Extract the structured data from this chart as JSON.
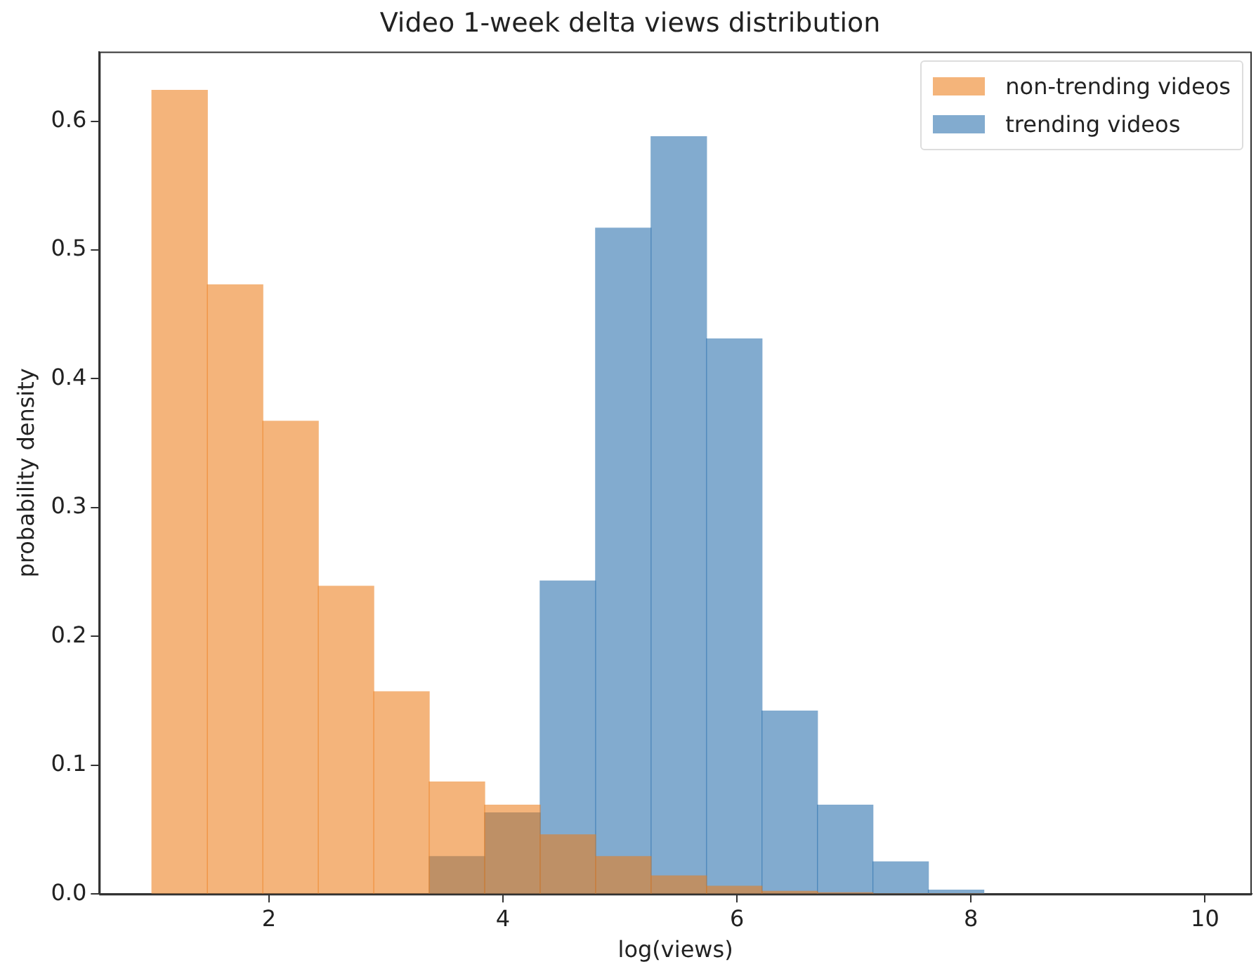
{
  "chart_data": {
    "type": "histogram",
    "title": "Video 1-week delta views distribution",
    "xlabel": "log(views)",
    "ylabel": "probability density",
    "bins": [
      1,
      1.474,
      1.948,
      2.422,
      2.896,
      3.37,
      3.844,
      4.318,
      4.792,
      5.266,
      5.74,
      6.214,
      6.688,
      7.162,
      7.636,
      8.11
    ],
    "series": [
      {
        "name": "non-trending videos",
        "color": "#f4b47a",
        "values": [
          0.624,
          0.473,
          0.367,
          0.239,
          0.157,
          0.087,
          0.069,
          0.046,
          0.029,
          0.014,
          0.006,
          0.002,
          0.001,
          0,
          0
        ]
      },
      {
        "name": "trending videos",
        "color": "#82abcf",
        "values": [
          0,
          0,
          0,
          0,
          0,
          0.029,
          0.063,
          0.243,
          0.517,
          0.588,
          0.431,
          0.142,
          0.069,
          0.025,
          0.003
        ]
      }
    ],
    "xlim": [
      0.55,
      10.4
    ],
    "xticks": [
      2,
      4,
      6,
      8,
      10
    ],
    "ylim": [
      0,
      0.654
    ],
    "yticks": [
      {
        "value": 0,
        "label": "0.0"
      },
      {
        "value": 0.1,
        "label": "0.1"
      },
      {
        "value": 0.2,
        "label": "0.2"
      },
      {
        "value": 0.3,
        "label": "0.3"
      },
      {
        "value": 0.4,
        "label": "0.4"
      },
      {
        "value": 0.5,
        "label": "0.5"
      },
      {
        "value": 0.6,
        "label": "0.6"
      }
    ],
    "grid": false,
    "legend": "top right"
  }
}
